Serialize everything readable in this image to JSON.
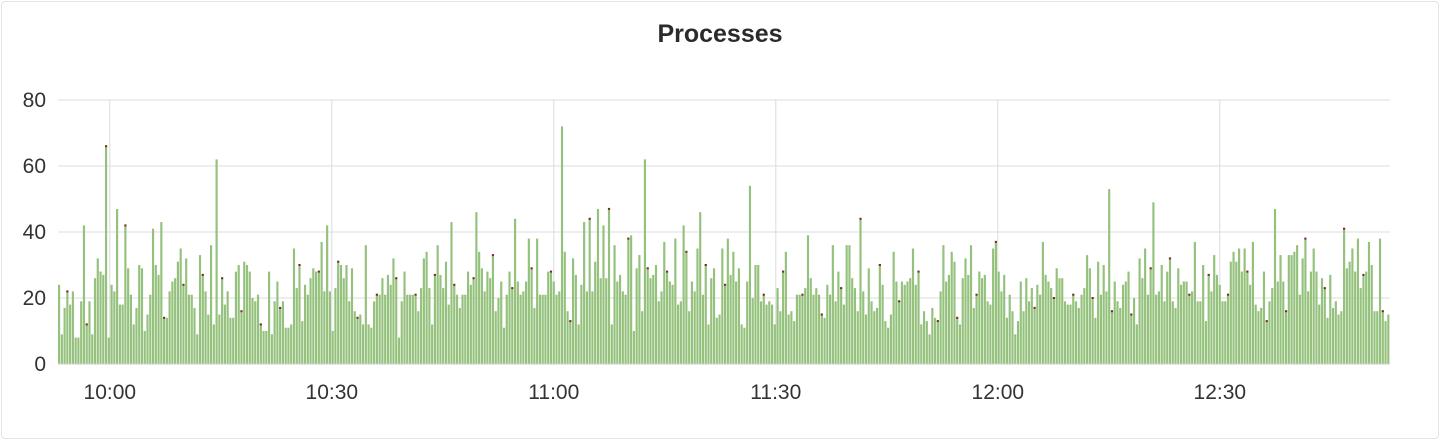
{
  "panel": {
    "title": "Processes"
  },
  "chart_data": {
    "type": "bar",
    "title": "Processes",
    "xlabel": "",
    "ylabel": "",
    "ylim": [
      0,
      80
    ],
    "y_ticks": [
      0,
      20,
      40,
      60,
      80
    ],
    "x_ticks": [
      "10:00",
      "10:30",
      "11:00",
      "11:30",
      "12:00",
      "12:30"
    ],
    "x_range": [
      "09:53",
      "12:53"
    ],
    "grid": true,
    "legend": "none",
    "colors": {
      "bars": "#94c17c",
      "bar_edge": "#6fa650",
      "top_marker": "#7a2a22",
      "grid": "#dcdcdc"
    },
    "series": [
      {
        "values": [
          24,
          9,
          17,
          22,
          18,
          22,
          8,
          8,
          19,
          42,
          12,
          19,
          9,
          26,
          32,
          28,
          27,
          66,
          8,
          24,
          22,
          47,
          18,
          18,
          42,
          29,
          21,
          12,
          17,
          30,
          29,
          10,
          15,
          21,
          41,
          30,
          27,
          43,
          14,
          14,
          22,
          25,
          26,
          31,
          35,
          24,
          32,
          21,
          21,
          17,
          9,
          33,
          27,
          22,
          15,
          36,
          12,
          62,
          15,
          26,
          18,
          22,
          14,
          14,
          28,
          30,
          16,
          31,
          30,
          28,
          20,
          19,
          21,
          12,
          10,
          10,
          28,
          9,
          19,
          25,
          17,
          19,
          11,
          11,
          12,
          35,
          23,
          30,
          13,
          24,
          21,
          26,
          29,
          28,
          28,
          37,
          22,
          42,
          22,
          10,
          23,
          31,
          30,
          26,
          30,
          19,
          29,
          16,
          14,
          15,
          12,
          36,
          12,
          11,
          19,
          21,
          21,
          26,
          21,
          27,
          24,
          32,
          26,
          8,
          19,
          28,
          21,
          21,
          21,
          21,
          16,
          23,
          32,
          34,
          23,
          12,
          27,
          36,
          27,
          23,
          31,
          18,
          43,
          24,
          21,
          17,
          21,
          21,
          28,
          24,
          26,
          46,
          34,
          29,
          22,
          28,
          26,
          33,
          16,
          20,
          25,
          11,
          21,
          28,
          23,
          44,
          25,
          21,
          22,
          25,
          38,
          29,
          17,
          38,
          21,
          21,
          21,
          28,
          28,
          25,
          21,
          22,
          72,
          34,
          16,
          13,
          32,
          27,
          12,
          24,
          43,
          22,
          44,
          22,
          31,
          47,
          26,
          42,
          26,
          47,
          12,
          36,
          25,
          27,
          22,
          21,
          38,
          39,
          10,
          29,
          33,
          16,
          62,
          29,
          26,
          27,
          30,
          19,
          22,
          37,
          28,
          25,
          24,
          38,
          18,
          19,
          42,
          34,
          16,
          25,
          22,
          35,
          46,
          21,
          30,
          12,
          26,
          29,
          14,
          15,
          35,
          24,
          38,
          27,
          34,
          25,
          29,
          12,
          11,
          25,
          54,
          20,
          30,
          30,
          19,
          21,
          18,
          19,
          18,
          12,
          23,
          16,
          28,
          34,
          15,
          16,
          13,
          21,
          21,
          21,
          23,
          39,
          26,
          21,
          23,
          21,
          15,
          14,
          24,
          21,
          36,
          19,
          28,
          23,
          18,
          36,
          36,
          26,
          23,
          16,
          44,
          22,
          15,
          29,
          19,
          16,
          17,
          30,
          24,
          13,
          11,
          15,
          34,
          25,
          19,
          25,
          24,
          25,
          26,
          35,
          24,
          28,
          12,
          16,
          13,
          9,
          17,
          14,
          13,
          22,
          36,
          25,
          27,
          34,
          31,
          14,
          12,
          26,
          32,
          27,
          36,
          17,
          21,
          28,
          26,
          27,
          19,
          18,
          35,
          37,
          28,
          22,
          27,
          14,
          21,
          16,
          9,
          13,
          25,
          16,
          26,
          19,
          23,
          17,
          24,
          21,
          37,
          27,
          25,
          23,
          20,
          29,
          26,
          26,
          19,
          18,
          18,
          21,
          19,
          17,
          21,
          23,
          33,
          29,
          20,
          14,
          31,
          21,
          30,
          22,
          53,
          16,
          25,
          19,
          17,
          24,
          25,
          28,
          15,
          20,
          12,
          32,
          26,
          35,
          21,
          29,
          49,
          21,
          22,
          30,
          19,
          28,
          32,
          19,
          17,
          29,
          24,
          25,
          25,
          21,
          22,
          37,
          19,
          19,
          30,
          13,
          27,
          22,
          33,
          27,
          24,
          19,
          19,
          21,
          31,
          34,
          31,
          35,
          28,
          35,
          28,
          24,
          37,
          18,
          16,
          17,
          28,
          13,
          19,
          23,
          47,
          25,
          33,
          25,
          16,
          33,
          33,
          34,
          36,
          21,
          32,
          38,
          22,
          28,
          35,
          28,
          18,
          26,
          23,
          14,
          27,
          17,
          19,
          15,
          16,
          41,
          29,
          31,
          35,
          28,
          38,
          23,
          27,
          28,
          37,
          30,
          16,
          16,
          38,
          16,
          13,
          15
        ]
      }
    ]
  }
}
